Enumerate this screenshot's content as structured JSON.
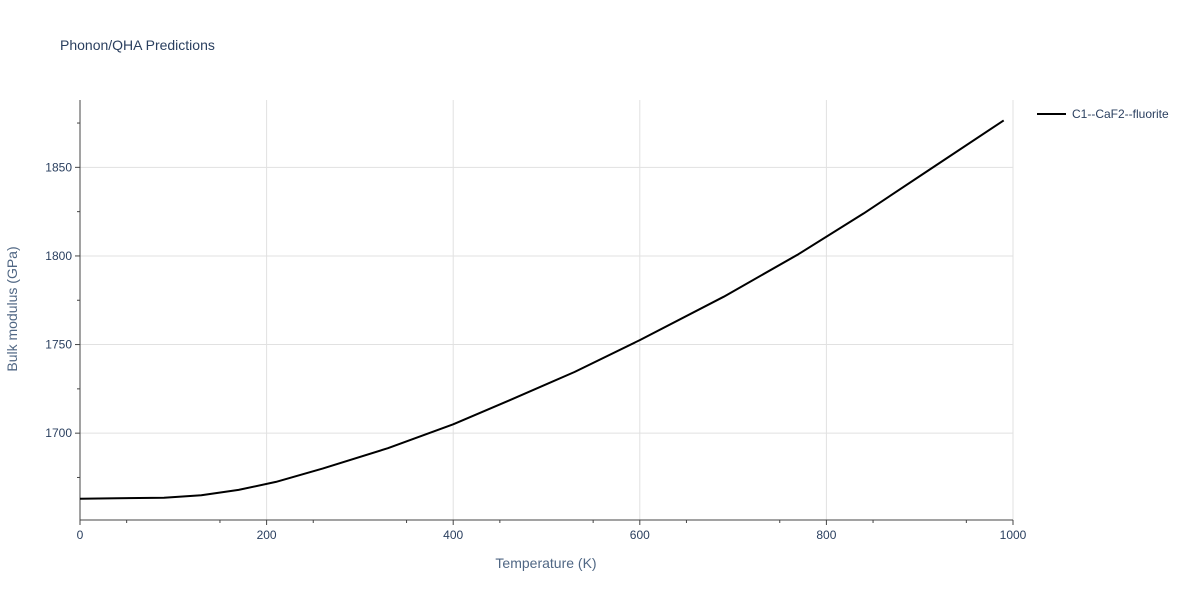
{
  "chart_data": {
    "type": "line",
    "title": "Phonon/QHA Predictions",
    "xlabel": "Temperature (K)",
    "ylabel": "Bulk modulus (GPa)",
    "xlim": [
      0,
      1000
    ],
    "ylim": [
      1651,
      1888
    ],
    "xticks": [
      0,
      200,
      400,
      600,
      800,
      1000
    ],
    "yticks": [
      1700,
      1750,
      1800,
      1850
    ],
    "grid": true,
    "legend_position": "top-right",
    "series": [
      {
        "name": "C1--CaF2--fluorite",
        "color": "#000000",
        "x": [
          0,
          40,
          90,
          130,
          170,
          210,
          260,
          330,
          400,
          460,
          530,
          600,
          690,
          770,
          840,
          910,
          990
        ],
        "y": [
          1663,
          1663.3,
          1663.6,
          1665,
          1668,
          1672.5,
          1680,
          1691.5,
          1705,
          1718.5,
          1734.5,
          1752.5,
          1777,
          1801,
          1824,
          1848.5,
          1876.5
        ]
      }
    ]
  }
}
